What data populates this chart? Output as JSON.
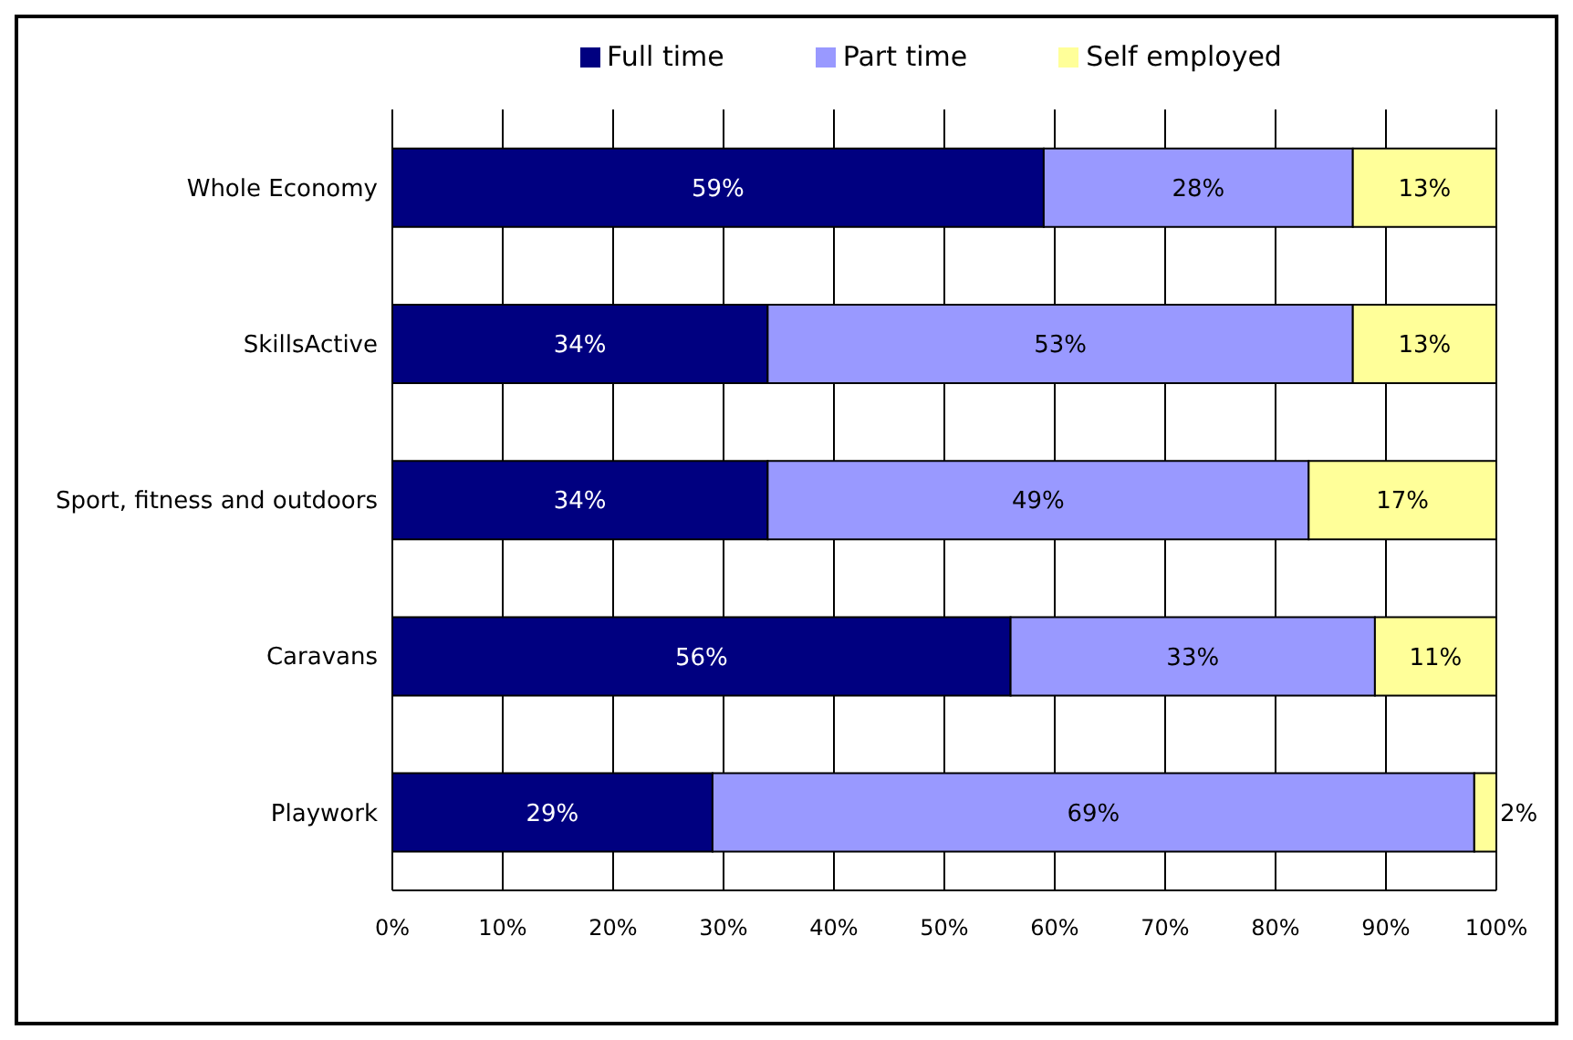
{
  "chart_data": {
    "type": "bar",
    "orientation": "horizontal",
    "stacked": true,
    "categories": [
      "Whole Economy",
      "SkillsActive",
      "Sport, fitness and outdoors",
      "Caravans",
      "Playwork"
    ],
    "series": [
      {
        "name": "Full time",
        "color": "#000080",
        "values": [
          59,
          34,
          34,
          56,
          29
        ],
        "value_labels": [
          "59%",
          "34%",
          "34%",
          "56%",
          "29%"
        ]
      },
      {
        "name": "Part time",
        "color": "#9999ff",
        "values": [
          28,
          53,
          49,
          33,
          69
        ],
        "value_labels": [
          "28%",
          "53%",
          "49%",
          "33%",
          "69%"
        ]
      },
      {
        "name": "Self employed",
        "color": "#ffff99",
        "values": [
          13,
          13,
          17,
          11,
          2
        ],
        "value_labels": [
          "13%",
          "13%",
          "17%",
          "11%",
          "2%"
        ]
      }
    ],
    "xlim": [
      0,
      100
    ],
    "xticks": [
      {
        "value": 0,
        "label": "0%"
      },
      {
        "value": 10,
        "label": "10%"
      },
      {
        "value": 20,
        "label": "20%"
      },
      {
        "value": 30,
        "label": "30%"
      },
      {
        "value": 40,
        "label": "40%"
      },
      {
        "value": 50,
        "label": "50%"
      },
      {
        "value": 60,
        "label": "60%"
      },
      {
        "value": 70,
        "label": "70%"
      },
      {
        "value": 80,
        "label": "80%"
      },
      {
        "value": 90,
        "label": "90%"
      },
      {
        "value": 100,
        "label": "100%"
      }
    ],
    "grid": "x",
    "legend": "top"
  }
}
